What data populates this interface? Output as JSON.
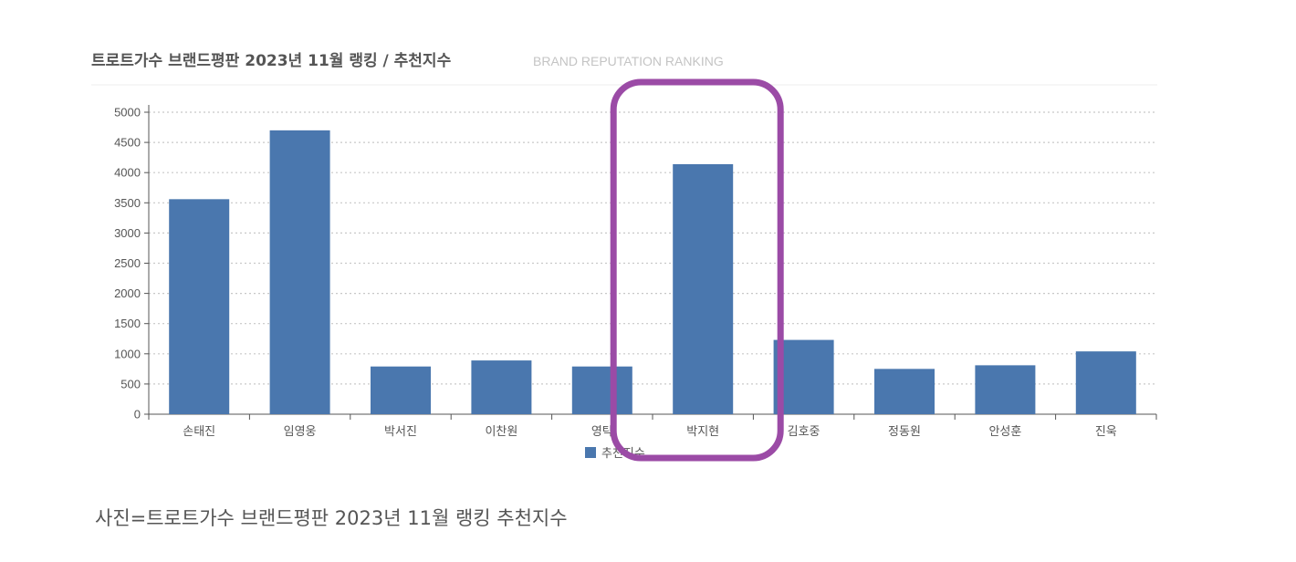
{
  "chart_data": {
    "type": "bar",
    "title": "트로트가수 브랜드평판 2023년 11월 랭킹 / 추천지수",
    "subtitle": "BRAND REPUTATION RANKING",
    "categories": [
      "손태진",
      "임영웅",
      "박서진",
      "이찬원",
      "영탁",
      "박지현",
      "김호중",
      "정동원",
      "안성훈",
      "진욱"
    ],
    "series": [
      {
        "name": "추천지수",
        "values": [
          3560,
          4700,
          790,
          890,
          790,
          4140,
          1230,
          750,
          810,
          1040
        ]
      }
    ],
    "yticks": [
      "0",
      "500",
      "1000",
      "1500",
      "2000",
      "2500",
      "3000",
      "3500",
      "4000",
      "4500",
      "5000"
    ],
    "ylim": [
      0,
      5000
    ],
    "xlabel": "",
    "ylabel": "",
    "grid": "horizontal dotted",
    "legend": "bottom",
    "bar_color": "#4a77ae",
    "highlight_category": "박지현",
    "highlight_color": "#9b4ba6"
  },
  "caption": "사진=트로트가수 브랜드평판 2023년 11월 랭킹 추천지수"
}
